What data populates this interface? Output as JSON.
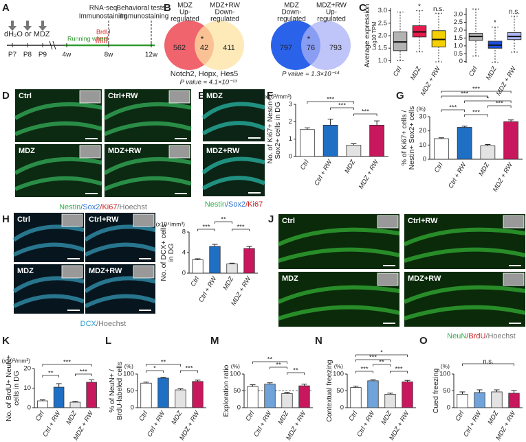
{
  "panel_labels": [
    "A",
    "B",
    "C",
    "D",
    "E",
    "F",
    "G",
    "H",
    "I",
    "J",
    "K",
    "L",
    "M",
    "N",
    "O"
  ],
  "timeline": {
    "treatment": "dH₂O or MDZ",
    "days": [
      "P7",
      "P8",
      "P9"
    ],
    "weeks": [
      "4w",
      "8w",
      "12w"
    ],
    "running": "Running wheel",
    "brdu": "BrdU",
    "at_8w": [
      "RNA-seq",
      "Immunostaining"
    ],
    "at_12w": [
      "Behavioral tests",
      "Immunostaining"
    ]
  },
  "venns": [
    {
      "left_label": [
        "MDZ",
        "Up-",
        "regulated"
      ],
      "right_label": [
        "MDZ+RW",
        "Down-",
        "regulated"
      ],
      "counts": [
        562,
        42,
        411
      ],
      "mark": "*",
      "genes": "Notch2, Hopx, Hes5",
      "p_value": "P value = 4.1×10⁻¹³"
    },
    {
      "left_label": [
        "MDZ",
        "Down-",
        "regulated"
      ],
      "right_label": [
        "MDZ+RW",
        "Up-",
        "regulated"
      ],
      "counts": [
        797,
        76,
        793
      ],
      "mark": "*",
      "p_value": "P value = 1.3×10⁻¹⁴"
    }
  ],
  "images": [
    {
      "labels": [
        "Ctrl",
        "Ctrl+RW",
        "MDZ",
        "MDZ+RW"
      ],
      "caption": [
        "Nestin",
        "/Sox2",
        "/Ki67",
        "/Hoechst"
      ]
    },
    {
      "labels": [
        "MDZ",
        "MDZ+RW"
      ],
      "caption": [
        "Nestin",
        "/Sox2",
        "/Ki67"
      ]
    },
    {
      "labels": [
        "Ctrl",
        "Ctrl+RW",
        "MDZ",
        "MDZ+RW"
      ],
      "caption": [
        "DCX",
        "/Hoechst"
      ]
    },
    {
      "labels": [
        "Ctrl",
        "Ctrl+RW",
        "MDZ",
        "MDZ+RW"
      ],
      "caption": [
        "NeuN",
        "/BrdU",
        "/Hoechst"
      ]
    }
  ],
  "chart_data": [
    {
      "type": "box",
      "ylabel": [
        "Average expression"
      ],
      "unit": "Log10 TPM",
      "categories": [
        "Ctrl",
        "MDZ",
        "MDZ + RW"
      ],
      "colors": [
        "#b3b3b3",
        "#e8194b",
        "#f5d000"
      ],
      "boxes": [
        {
          "min": 1.0,
          "q1": 1.4,
          "median": 1.75,
          "q3": 2.15,
          "max": 2.95
        },
        {
          "min": 1.35,
          "q1": 1.95,
          "median": 2.15,
          "q3": 2.4,
          "max": 3.0
        },
        {
          "min": 0.95,
          "q1": 1.55,
          "median": 1.85,
          "q3": 2.2,
          "max": 2.9
        }
      ],
      "sig": [
        null,
        "*",
        "n.s."
      ],
      "ylim": [
        0.9,
        3.1
      ],
      "yticks": [
        {
          "value": 1,
          "label": "1.0"
        },
        1.5,
        {
          "value": 2,
          "label": "2.0"
        },
        2.5,
        {
          "value": 3,
          "label": "3.0"
        }
      ]
    },
    {
      "type": "box",
      "categories": [
        "Ctrl",
        "MDZ",
        "MDZ + RW"
      ],
      "colors": [
        "#b3b3b3",
        "#1a4fe0",
        "#a9b5f2"
      ],
      "boxes": [
        {
          "min": 0.35,
          "q1": 1.35,
          "median": 1.6,
          "q3": 1.8,
          "max": 3.35
        },
        {
          "min": -0.05,
          "q1": 0.85,
          "median": 1.05,
          "q3": 1.3,
          "max": 2.2
        },
        {
          "min": 0.6,
          "q1": 1.4,
          "median": 1.6,
          "q3": 1.85,
          "max": 2.9
        }
      ],
      "sig": [
        null,
        "*",
        "n.s."
      ],
      "ylim": [
        -0.1,
        3.4
      ],
      "yticks": [
        0,
        0.5,
        {
          "value": 1,
          "label": "1.0"
        },
        1.5,
        {
          "value": 2,
          "label": "2.0"
        },
        2.5,
        {
          "value": 3,
          "label": "3.0"
        }
      ]
    },
    {
      "type": "bar",
      "ylabel": [
        "No. of Ki67+ Nestin+",
        "Sox2+ cells in DG"
      ],
      "unit": "(x10³/mm³)",
      "categories": [
        "Ctrl",
        "Ctrl + RW",
        "MDZ",
        "MDZ + RW"
      ],
      "colors": [
        "#ffffff",
        "#1f6fc4",
        "#e3e3e3",
        "#c8175d"
      ],
      "values": [
        1.55,
        1.8,
        0.65,
        1.8
      ],
      "errors": [
        0.1,
        0.35,
        0.08,
        0.25
      ],
      "significance": [
        "***",
        "***",
        "***"
      ],
      "ylim": [
        0,
        3
      ],
      "yticks": [
        0,
        1,
        2,
        3
      ]
    },
    {
      "type": "bar",
      "ylabel": [
        "% of Ki67+ cells /",
        "Nestin+ Sox2+ cells"
      ],
      "unit": "(%)",
      "categories": [
        "Ctrl",
        "Ctrl + RW",
        "MDZ",
        "MDZ + RW"
      ],
      "colors": [
        "#ffffff",
        "#1f6fc4",
        "#e3e3e3",
        "#c8175d"
      ],
      "values": [
        14.5,
        22.5,
        9.5,
        26.5
      ],
      "errors": [
        0.6,
        0.8,
        0.9,
        1.2
      ],
      "significance": [
        "***",
        "***",
        "*",
        "***",
        "***",
        "***"
      ],
      "ylim": [
        0,
        30
      ],
      "yticks": [
        0,
        10,
        20,
        30
      ]
    },
    {
      "type": "bar",
      "ylabel": [
        "No. of DCX+ cells",
        "in DG"
      ],
      "unit": "(x10⁴/mm³)",
      "categories": [
        "Ctrl",
        "Ctrl + RW",
        "MDZ",
        "MDZ + RW"
      ],
      "colors": [
        "#ffffff",
        "#1f6fc4",
        "#e3e3e3",
        "#c8175d"
      ],
      "values": [
        2.6,
        5.2,
        1.8,
        4.8
      ],
      "errors": [
        0.2,
        0.4,
        0.15,
        0.4
      ],
      "significance": [
        "***",
        "**",
        "***"
      ],
      "ylim": [
        0,
        8
      ],
      "yticks": [
        0,
        4,
        8
      ]
    },
    {
      "type": "bar",
      "ylabel": [
        "No. of BrdU+ NeuN+",
        "cells in DG"
      ],
      "unit": "(x10³/mm³)",
      "categories": [
        "Ctrl",
        "Ctrl + RW",
        "MDZ",
        "MDZ + RW"
      ],
      "colors": [
        "#ffffff",
        "#1f6fc4",
        "#e3e3e3",
        "#c8175d"
      ],
      "values": [
        3.5,
        10.5,
        2.8,
        13
      ],
      "errors": [
        0.5,
        1.8,
        0.4,
        1.2
      ],
      "significance": [
        "**",
        "***",
        "***"
      ],
      "ylim": [
        0,
        20
      ],
      "yticks": [
        0,
        10,
        20
      ]
    },
    {
      "type": "bar",
      "ylabel": [
        "% of NeuN+ /",
        "BrdU-labeled cells"
      ],
      "unit": "(%)",
      "categories": [
        "Ctrl",
        "Ctrl + RW",
        "MDZ",
        "MDZ + RW"
      ],
      "colors": [
        "#ffffff",
        "#1f6fc4",
        "#e3e3e3",
        "#c8175d"
      ],
      "values": [
        73,
        88,
        53,
        78
      ],
      "errors": [
        3,
        2,
        3,
        4
      ],
      "significance": [
        "*",
        "**",
        "***"
      ],
      "ylim": [
        0,
        100
      ],
      "yticks": [
        0,
        50,
        100
      ]
    },
    {
      "type": "bar",
      "ylabel": [
        "Exploration ratio"
      ],
      "unit": "(%)",
      "categories": [
        "Ctrl",
        "Ctrl + RW",
        "MDZ",
        "MDZ + RW"
      ],
      "colors": [
        "#ffffff",
        "#6fa3d9",
        "#e3e3e3",
        "#c8175d"
      ],
      "values": [
        63,
        70,
        42,
        65
      ],
      "errors": [
        5,
        4,
        4,
        5
      ],
      "significance": [
        "**",
        "**",
        "**"
      ],
      "hline": 50,
      "ylim": [
        0,
        100
      ],
      "yticks": [
        0,
        50,
        100
      ]
    },
    {
      "type": "bar",
      "ylabel": [
        "Contextual freezing"
      ],
      "unit": "(%)",
      "categories": [
        "Ctrl",
        "Ctrl + RW",
        "MDZ",
        "MDZ + RW"
      ],
      "colors": [
        "#ffffff",
        "#6fa3d9",
        "#e3e3e3",
        "#c8175d"
      ],
      "values": [
        60,
        80,
        40,
        77
      ],
      "errors": [
        4,
        3,
        3,
        4
      ],
      "significance": [
        "*",
        "***",
        "**",
        "***",
        "***"
      ],
      "ylim": [
        0,
        100
      ],
      "yticks": [
        0,
        50,
        100
      ]
    },
    {
      "type": "bar",
      "ylabel": [
        "Cued freezing"
      ],
      "unit": "(%)",
      "categories": [
        "Ctrl",
        "Ctrl + RW",
        "MDZ",
        "MDZ + RW"
      ],
      "colors": [
        "#ffffff",
        "#6fa3d9",
        "#e3e3e3",
        "#c8175d"
      ],
      "values": [
        40,
        45,
        47,
        43
      ],
      "errors": [
        7,
        8,
        6,
        8
      ],
      "significance": [
        "n.s."
      ],
      "ylim": [
        0,
        100
      ],
      "yticks": [
        0,
        50,
        100
      ]
    }
  ]
}
